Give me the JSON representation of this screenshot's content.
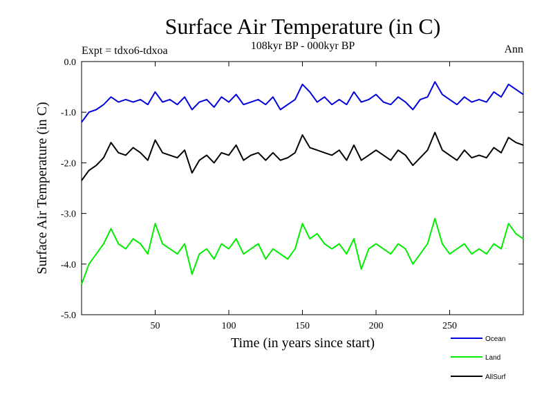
{
  "chart_data": {
    "type": "line",
    "title": "Surface Air Temperature (in C)",
    "subtitle": "108kyr BP - 000kyr BP",
    "expt_label": "Expt = tdxo6-tdxoa",
    "season_label": "Ann",
    "xlabel": "Time (in years since start)",
    "ylabel": "Surface Air Temperature (in C)",
    "xlim": [
      0,
      300
    ],
    "ylim": [
      -5.0,
      0.0
    ],
    "xticks": [
      50,
      100,
      150,
      200,
      250
    ],
    "xtick_labels": [
      "50",
      "100",
      "150",
      "200",
      "250"
    ],
    "yticks": [
      0.0,
      -1.0,
      -2.0,
      -3.0,
      -4.0,
      -5.0
    ],
    "ytick_labels": [
      "0.0",
      "-1.0",
      "-2.0",
      "-3.0",
      "-4.0",
      "-5.0"
    ],
    "legend_position": "bottom-right",
    "series": [
      {
        "name": "Ocean",
        "color": "#0000dd",
        "x": [
          0,
          5,
          10,
          15,
          20,
          25,
          30,
          35,
          40,
          45,
          50,
          55,
          60,
          65,
          70,
          75,
          80,
          85,
          90,
          95,
          100,
          105,
          110,
          115,
          120,
          125,
          130,
          135,
          140,
          145,
          150,
          155,
          160,
          165,
          170,
          175,
          180,
          185,
          190,
          195,
          200,
          205,
          210,
          215,
          220,
          225,
          230,
          235,
          240,
          245,
          250,
          255,
          260,
          265,
          270,
          275,
          280,
          285,
          290,
          295,
          300
        ],
        "values": [
          -1.2,
          -1.0,
          -0.95,
          -0.85,
          -0.7,
          -0.8,
          -0.75,
          -0.8,
          -0.75,
          -0.85,
          -0.6,
          -0.8,
          -0.75,
          -0.85,
          -0.7,
          -0.95,
          -0.8,
          -0.75,
          -0.9,
          -0.7,
          -0.8,
          -0.65,
          -0.85,
          -0.8,
          -0.75,
          -0.85,
          -0.7,
          -0.95,
          -0.85,
          -0.75,
          -0.45,
          -0.6,
          -0.8,
          -0.7,
          -0.85,
          -0.75,
          -0.85,
          -0.6,
          -0.8,
          -0.75,
          -0.65,
          -0.8,
          -0.85,
          -0.7,
          -0.8,
          -0.95,
          -0.75,
          -0.7,
          -0.4,
          -0.65,
          -0.75,
          -0.85,
          -0.7,
          -0.8,
          -0.75,
          -0.8,
          -0.6,
          -0.7,
          -0.45,
          -0.55,
          -0.65
        ]
      },
      {
        "name": "Land",
        "color": "#00ee00",
        "x": [
          0,
          5,
          10,
          15,
          20,
          25,
          30,
          35,
          40,
          45,
          50,
          55,
          60,
          65,
          70,
          75,
          80,
          85,
          90,
          95,
          100,
          105,
          110,
          115,
          120,
          125,
          130,
          135,
          140,
          145,
          150,
          155,
          160,
          165,
          170,
          175,
          180,
          185,
          190,
          195,
          200,
          205,
          210,
          215,
          220,
          225,
          230,
          235,
          240,
          245,
          250,
          255,
          260,
          265,
          270,
          275,
          280,
          285,
          290,
          295,
          300
        ],
        "values": [
          -4.4,
          -4.0,
          -3.8,
          -3.6,
          -3.3,
          -3.6,
          -3.7,
          -3.5,
          -3.6,
          -3.8,
          -3.2,
          -3.6,
          -3.7,
          -3.8,
          -3.6,
          -4.2,
          -3.8,
          -3.7,
          -3.9,
          -3.6,
          -3.7,
          -3.5,
          -3.8,
          -3.7,
          -3.6,
          -3.9,
          -3.7,
          -3.8,
          -3.9,
          -3.7,
          -3.2,
          -3.5,
          -3.4,
          -3.6,
          -3.7,
          -3.6,
          -3.8,
          -3.5,
          -4.1,
          -3.7,
          -3.6,
          -3.7,
          -3.8,
          -3.6,
          -3.7,
          -4.0,
          -3.8,
          -3.6,
          -3.1,
          -3.6,
          -3.8,
          -3.7,
          -3.6,
          -3.8,
          -3.7,
          -3.8,
          -3.6,
          -3.7,
          -3.2,
          -3.4,
          -3.5
        ]
      },
      {
        "name": "AllSurf",
        "color": "#000000",
        "x": [
          0,
          5,
          10,
          15,
          20,
          25,
          30,
          35,
          40,
          45,
          50,
          55,
          60,
          65,
          70,
          75,
          80,
          85,
          90,
          95,
          100,
          105,
          110,
          115,
          120,
          125,
          130,
          135,
          140,
          145,
          150,
          155,
          160,
          165,
          170,
          175,
          180,
          185,
          190,
          195,
          200,
          205,
          210,
          215,
          220,
          225,
          230,
          235,
          240,
          245,
          250,
          255,
          260,
          265,
          270,
          275,
          280,
          285,
          290,
          295,
          300
        ],
        "values": [
          -2.35,
          -2.15,
          -2.05,
          -1.9,
          -1.6,
          -1.8,
          -1.85,
          -1.7,
          -1.8,
          -1.95,
          -1.55,
          -1.8,
          -1.85,
          -1.9,
          -1.75,
          -2.2,
          -1.95,
          -1.85,
          -2.0,
          -1.8,
          -1.85,
          -1.65,
          -1.95,
          -1.85,
          -1.8,
          -1.95,
          -1.8,
          -1.95,
          -1.9,
          -1.8,
          -1.45,
          -1.7,
          -1.75,
          -1.8,
          -1.85,
          -1.75,
          -1.95,
          -1.65,
          -1.95,
          -1.85,
          -1.75,
          -1.85,
          -1.95,
          -1.75,
          -1.85,
          -2.05,
          -1.9,
          -1.75,
          -1.4,
          -1.75,
          -1.85,
          -1.95,
          -1.75,
          -1.9,
          -1.85,
          -1.9,
          -1.7,
          -1.8,
          -1.5,
          -1.6,
          -1.65
        ]
      }
    ]
  }
}
